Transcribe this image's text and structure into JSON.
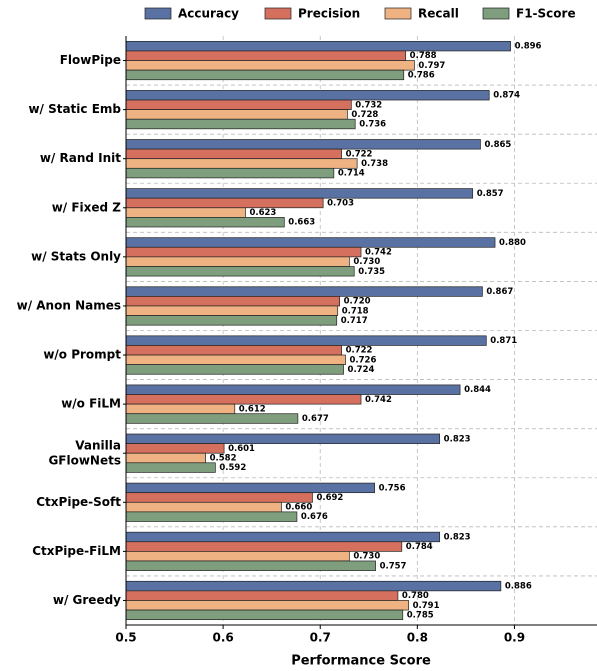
{
  "chart_data": {
    "type": "hbar",
    "xlabel": "Performance Score",
    "categories": [
      "FlowPipe",
      "w/ Static Emb",
      "w/ Rand Init",
      "w/ Fixed Z",
      "w/ Stats Only",
      "w/ Anon Names",
      "w/o Prompt",
      "w/o FiLM",
      "Vanilla\nGFlowNets",
      "CtxPipe-Soft",
      "CtxPipe-FiLM",
      "w/ Greedy"
    ],
    "series": [
      {
        "name": "Accuracy",
        "color": "#5a71a3",
        "values": [
          0.896,
          0.874,
          0.865,
          0.857,
          0.88,
          0.867,
          0.871,
          0.844,
          0.823,
          0.756,
          0.823,
          0.886
        ],
        "value_labels": [
          "0.896",
          "0.874",
          "0.865",
          "0.857",
          "0.880",
          "0.867",
          "0.871",
          "0.844",
          "0.823",
          "0.756",
          "0.823",
          "0.886"
        ]
      },
      {
        "name": "Precision",
        "color": "#d6705e",
        "values": [
          0.788,
          0.732,
          0.722,
          0.703,
          0.742,
          0.72,
          0.722,
          0.742,
          0.601,
          0.692,
          0.784,
          0.78
        ],
        "value_labels": [
          "0.788",
          "0.732",
          "0.722",
          "0.703",
          "0.742",
          "0.720",
          "0.722",
          "0.742",
          "0.601",
          "0.692",
          "0.784",
          "0.780"
        ]
      },
      {
        "name": "Recall",
        "color": "#efb283",
        "values": [
          0.797,
          0.728,
          0.738,
          0.623,
          0.73,
          0.718,
          0.726,
          0.612,
          0.582,
          0.66,
          0.73,
          0.791
        ],
        "value_labels": [
          "0.797",
          "0.728",
          "0.738",
          "0.623",
          "0.730",
          "0.718",
          "0.726",
          "0.612",
          "0.582",
          "0.660",
          "0.730",
          "0.791"
        ]
      },
      {
        "name": "F1-Score",
        "color": "#7e9e7e",
        "values": [
          0.786,
          0.736,
          0.714,
          0.663,
          0.735,
          0.717,
          0.724,
          0.677,
          0.592,
          0.676,
          0.757,
          0.785
        ],
        "value_labels": [
          "0.786",
          "0.736",
          "0.714",
          "0.663",
          "0.735",
          "0.717",
          "0.724",
          "0.677",
          "0.592",
          "0.676",
          "0.757",
          "0.785"
        ]
      }
    ],
    "xlim": [
      0.5,
      0.985
    ],
    "xticks": [
      0.5,
      0.6,
      0.7,
      0.8,
      0.9
    ],
    "grid": true
  }
}
